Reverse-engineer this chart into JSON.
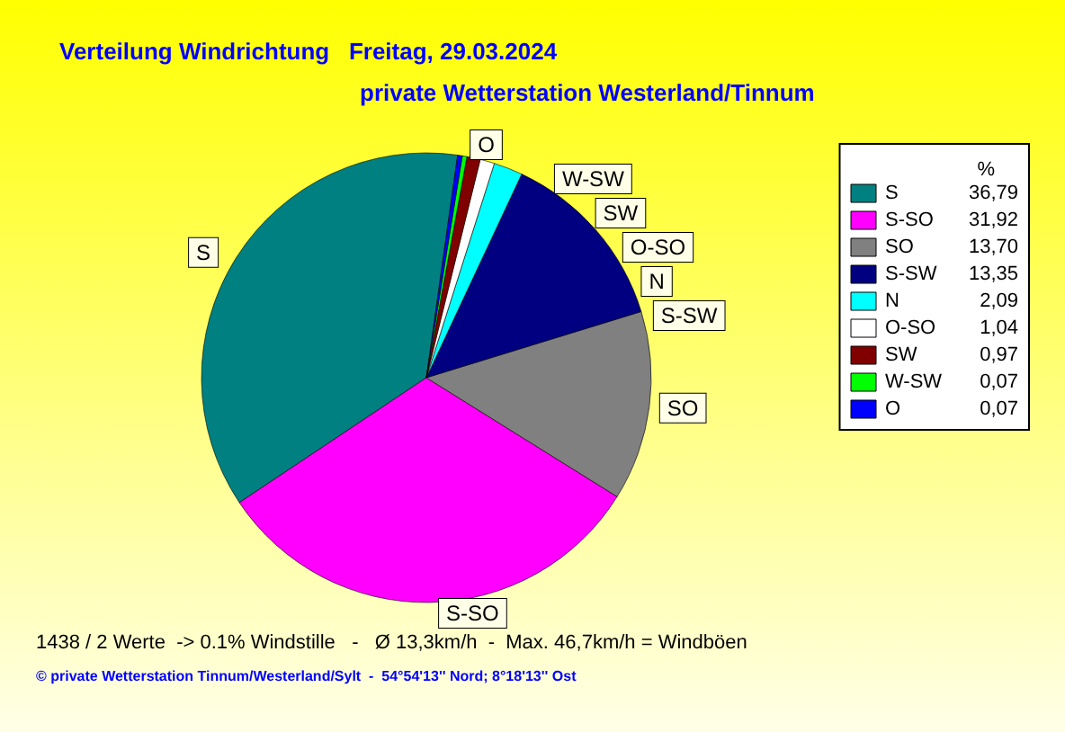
{
  "chart_data": {
    "type": "pie",
    "title": "Verteilung Windrichtung   Freitag, 29.03.2024",
    "subtitle": "private Wetterstation Westerland/Tinnum",
    "legend_title": "%",
    "categories": [
      "S",
      "S-SO",
      "SO",
      "S-SW",
      "N",
      "O-SO",
      "SW",
      "W-SW",
      "O"
    ],
    "values": [
      36.79,
      31.92,
      13.7,
      13.35,
      2.09,
      1.04,
      0.97,
      0.07,
      0.07
    ],
    "value_labels": [
      "36,79",
      "31,92",
      "13,70",
      "13,35",
      "2,09",
      "1,04",
      "0,97",
      "0,07",
      "0,07"
    ],
    "colors": [
      "#008080",
      "#ff00ff",
      "#808080",
      "#000080",
      "#00ffff",
      "#ffffff",
      "#800000",
      "#00ff00",
      "#0000ff"
    ],
    "legend": "right",
    "annotations": [
      "1438 / 2 Werte  -> 0.1% Windstille   -   Ø 13,3km/h  -  Max. 46,7km/h = Windböen",
      "© private Wetterstation Tinnum/Westerland/Sylt  -  54°54'13'' Nord; 8°18'13'' Ost"
    ]
  }
}
